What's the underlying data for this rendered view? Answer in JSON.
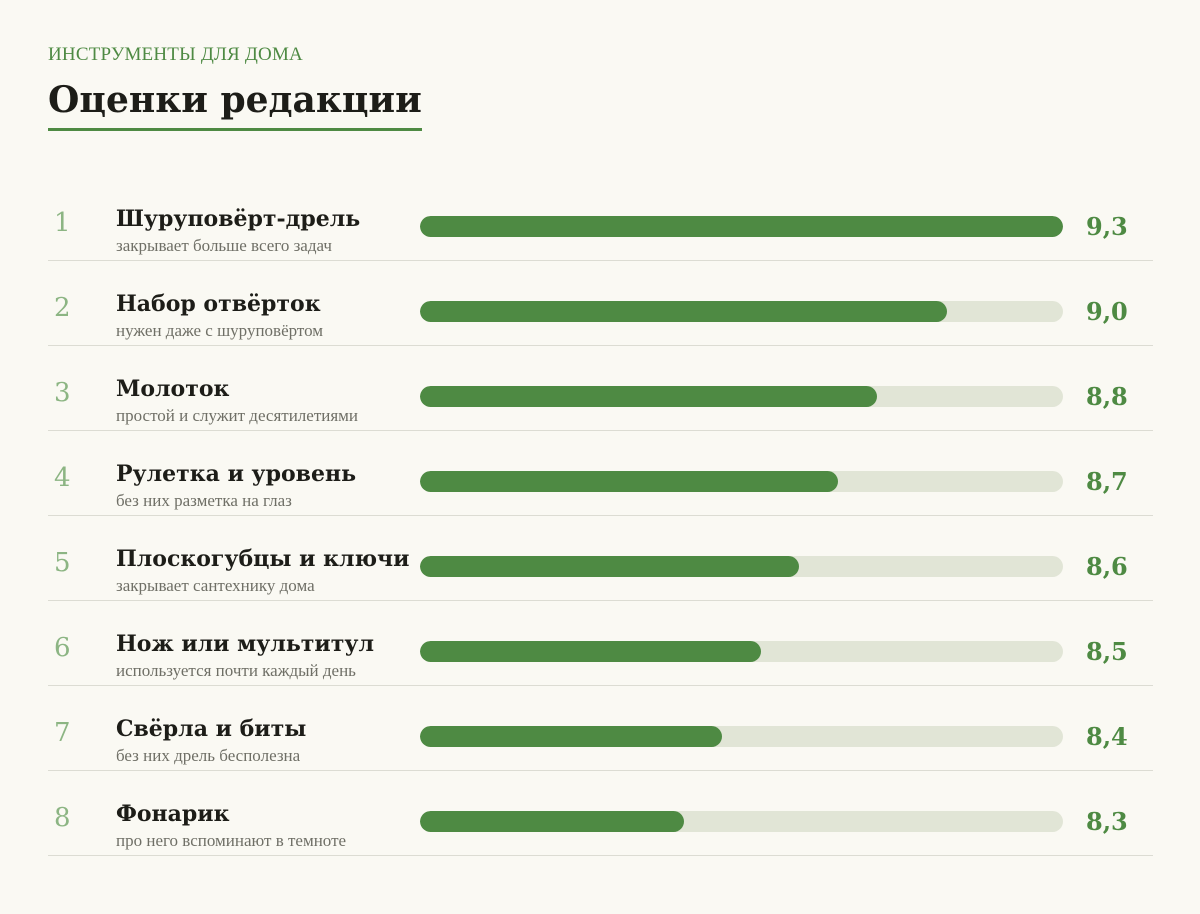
{
  "header": {
    "kicker": "ИНСТРУМЕНТЫ ДЛЯ ДОМА",
    "title": "Оценки редакции"
  },
  "colors": {
    "accent": "#4e8a43",
    "track": "#e1e5d6",
    "rank": "#8cb583"
  },
  "chart_data": {
    "type": "bar",
    "orientation": "horizontal",
    "title": "Оценки редакции",
    "xlabel": "",
    "ylabel": "",
    "rows": [
      {
        "rank": "1",
        "name": "Шуруповёрт-дрель",
        "note": "закрывает больше всего задач",
        "value": 9.3,
        "label": "9,3",
        "bar_fraction": 1.0
      },
      {
        "rank": "2",
        "name": "Набор отвёрток",
        "note": "нужен даже с шуруповёртом",
        "value": 9.0,
        "label": "9,0",
        "bar_fraction": 0.82
      },
      {
        "rank": "3",
        "name": "Молоток",
        "note": "простой и служит десятилетиями",
        "value": 8.8,
        "label": "8,8",
        "bar_fraction": 0.71
      },
      {
        "rank": "4",
        "name": "Рулетка и уровень",
        "note": "без них разметка на глаз",
        "value": 8.7,
        "label": "8,7",
        "bar_fraction": 0.65
      },
      {
        "rank": "5",
        "name": "Плоскогубцы и ключи",
        "note": "закрывает сантехнику дома",
        "value": 8.6,
        "label": "8,6",
        "bar_fraction": 0.59
      },
      {
        "rank": "6",
        "name": "Нож или мультитул",
        "note": "используется почти каждый день",
        "value": 8.5,
        "label": "8,5",
        "bar_fraction": 0.53
      },
      {
        "rank": "7",
        "name": "Свёрла и биты",
        "note": "без них дрель бесполезна",
        "value": 8.4,
        "label": "8,4",
        "bar_fraction": 0.47
      },
      {
        "rank": "8",
        "name": "Фонарик",
        "note": "про него вспоминают в темноте",
        "value": 8.3,
        "label": "8,3",
        "bar_fraction": 0.41
      }
    ]
  }
}
